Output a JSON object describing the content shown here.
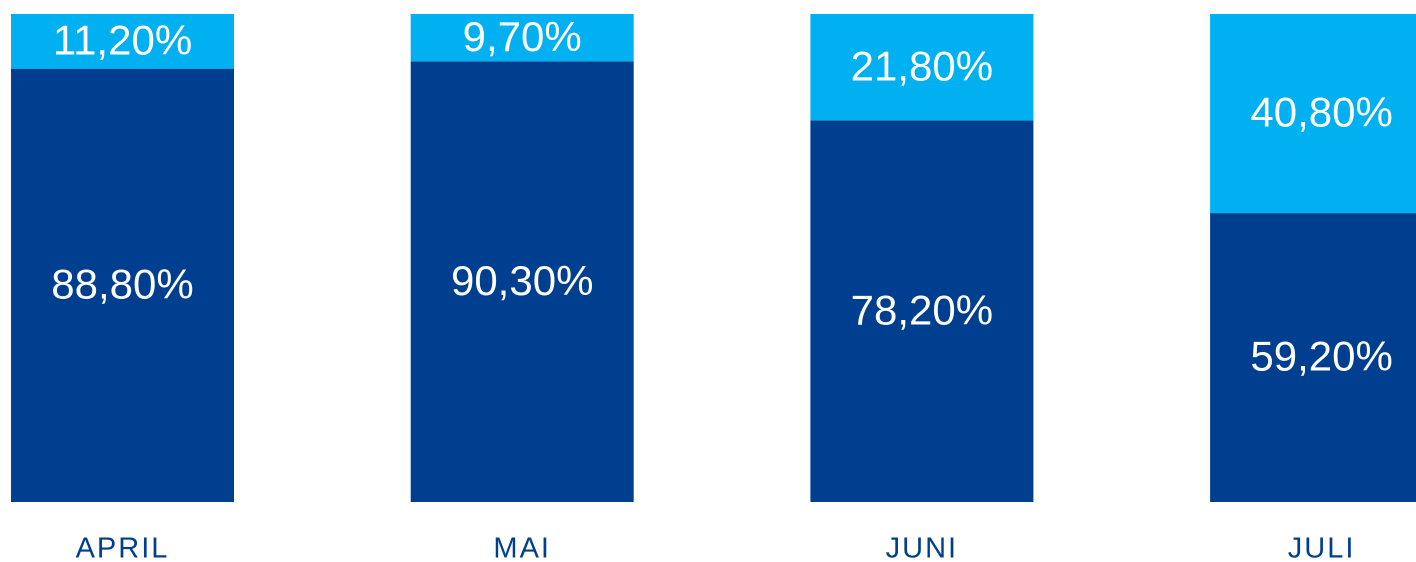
{
  "chart_data": {
    "type": "stacked_bar",
    "categories": [
      "APRIL",
      "MAI",
      "JUNI",
      "JULI"
    ],
    "series": [
      {
        "color": "#003f8f",
        "values": [
          88.8,
          90.3,
          78.2,
          59.2
        ],
        "value_labels": [
          "88,80%",
          "90,30%",
          "78,20%",
          "59,20%"
        ]
      },
      {
        "color": "#00b0f0",
        "values": [
          11.2,
          9.7,
          21.8,
          40.8
        ],
        "value_labels": [
          "11,20%",
          "9,70%",
          "21,80%",
          "40,80%"
        ]
      }
    ],
    "ylim": [
      0,
      100
    ]
  }
}
